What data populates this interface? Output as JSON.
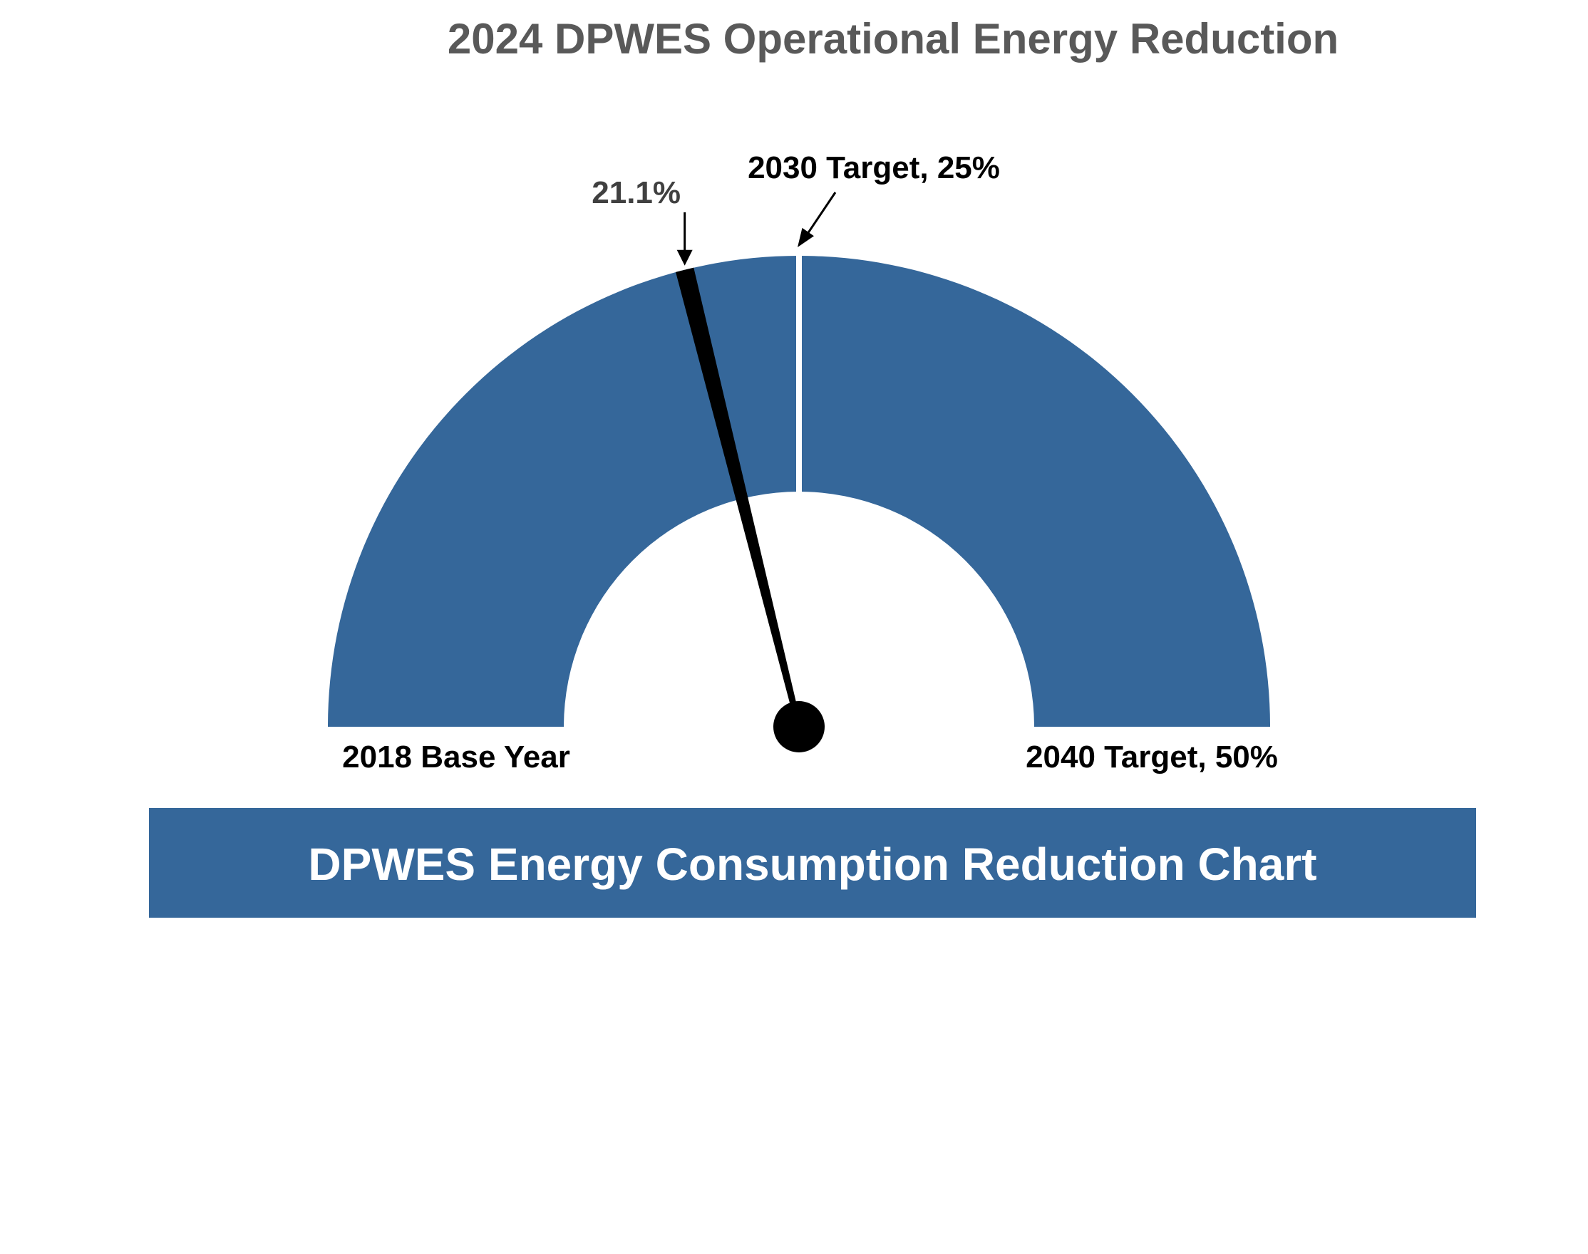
{
  "chart_data": {
    "type": "gauge",
    "title": "2024 DPWES Operational Energy Reduction",
    "min": 0,
    "max": 50,
    "value": 21.1,
    "value_label": "21.1%",
    "target_mid": 25,
    "labels": {
      "min": "2018 Base Year",
      "mid": "2030 Target, 25%",
      "max": "2040 Target, 50%"
    },
    "banner": "DPWES Energy Consumption Reduction Chart"
  },
  "colors": {
    "gauge": "#35679a",
    "needle": "#000000",
    "title": "#595959",
    "banner": "#35679a"
  }
}
